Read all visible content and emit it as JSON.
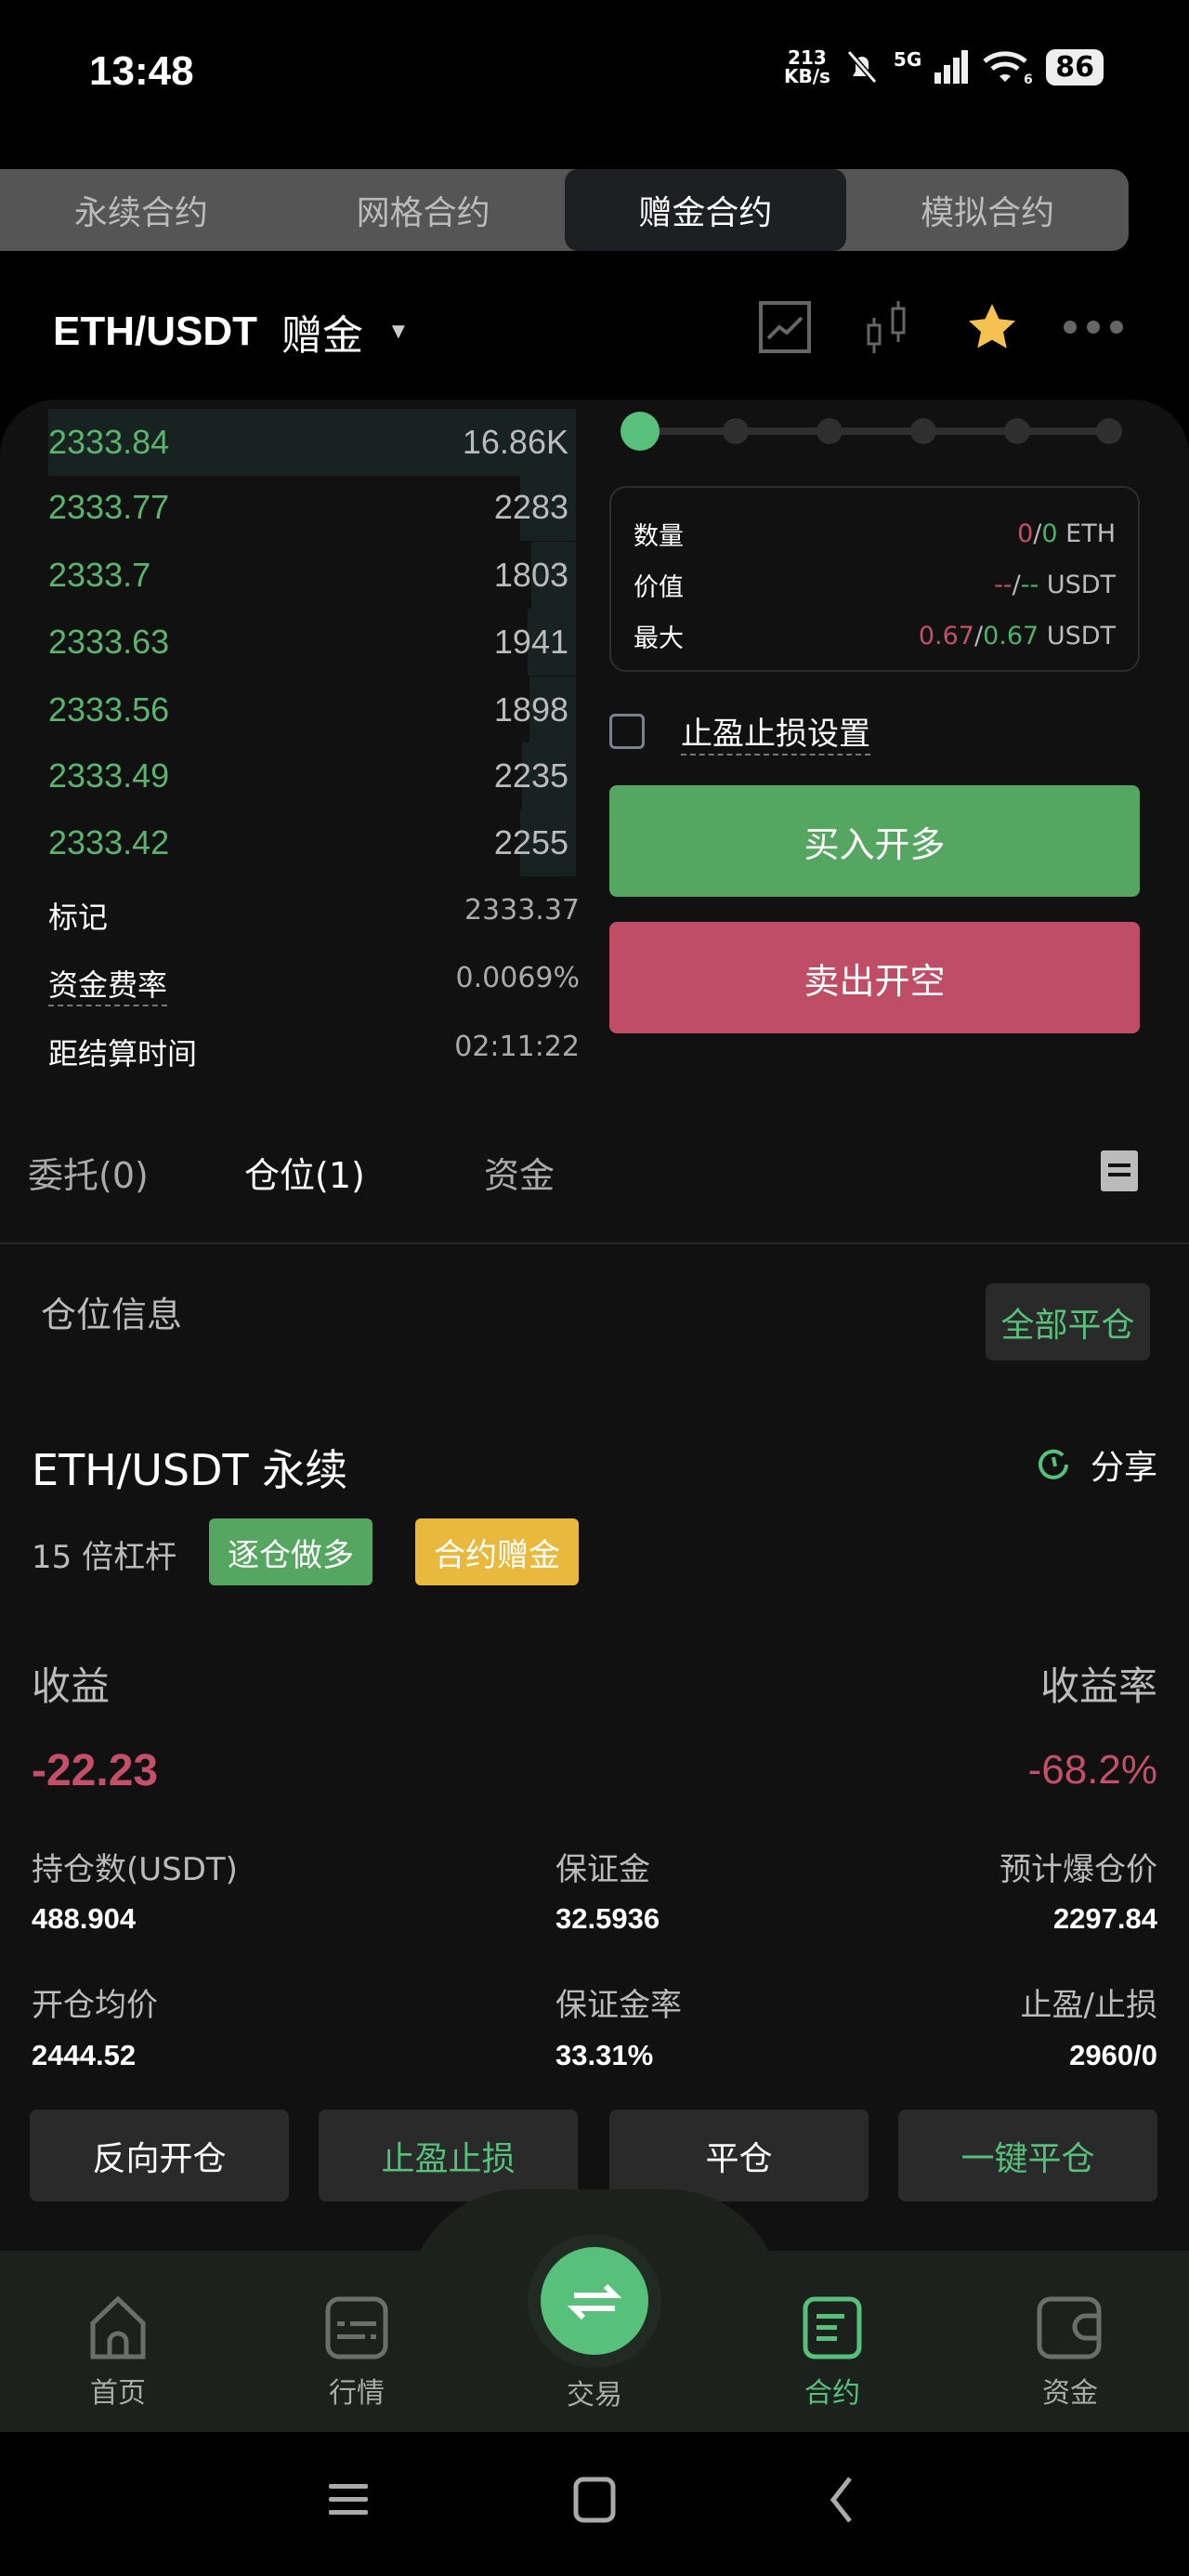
{
  "status_bar": {
    "time": "13:48",
    "net_speed": "213",
    "net_unit": "KB/s",
    "network": "5G",
    "wifi_badge": "6",
    "battery": "86"
  },
  "mode_tabs": [
    {
      "label": "永续合约"
    },
    {
      "label": "网格合约"
    },
    {
      "label": "赠金合约",
      "active": true
    },
    {
      "label": "模拟合约"
    }
  ],
  "header": {
    "pair": "ETH/USDT",
    "mode": "赠金",
    "icons": [
      "chart-line-icon",
      "candlestick-icon",
      "star-icon",
      "more-icon"
    ],
    "favorite_color": "#f5c150"
  },
  "orderbook": {
    "rows": [
      {
        "price": "2333.84",
        "qty": "16.86K"
      },
      {
        "price": "2333.77",
        "qty": "2283"
      },
      {
        "price": "2333.7",
        "qty": "1803"
      },
      {
        "price": "2333.63",
        "qty": "1941"
      },
      {
        "price": "2333.56",
        "qty": "1898"
      },
      {
        "price": "2333.49",
        "qty": "2235"
      },
      {
        "price": "2333.42",
        "qty": "2255"
      }
    ],
    "mark_label": "标记",
    "mark_value": "2333.37",
    "funding_label": "资金费率",
    "funding_value": "0.0069%",
    "settle_label": "距结算时间",
    "settle_value": "02:11:22"
  },
  "order_form": {
    "leverage_slider_level": 0,
    "slider_steps": 6,
    "qty_label": "数量",
    "qty_sell": "0",
    "qty_buy": "0",
    "qty_unit": "ETH",
    "value_label": "价值",
    "value_sell": "--",
    "value_buy": "--",
    "value_unit": "USDT",
    "max_label": "最大",
    "max_sell": "0.67",
    "max_buy": "0.67",
    "max_unit": "USDT",
    "tpsl_label": "止盈止损设置",
    "tpsl_checked": false,
    "buy_label": "买入开多",
    "sell_label": "卖出开空",
    "buy_color": "#55a660",
    "sell_color": "#c04d66"
  },
  "order_tabs": [
    {
      "label": "委托(0)"
    },
    {
      "label": "仓位(1)",
      "active": true
    },
    {
      "label": "资金"
    }
  ],
  "position": {
    "section_title": "仓位信息",
    "close_all": "全部平仓",
    "symbol": "ETH/USDT 永续",
    "share": "分享",
    "leverage": "15 倍杠杆",
    "tag_side": "逐仓做多",
    "tag_bonus": "合约赠金",
    "pnl_label": "收益",
    "pnl_value": "-22.23",
    "roe_label": "收益率",
    "roe_value": "-68.2%",
    "size_label": "持仓数(USDT)",
    "size_value": "488.904",
    "margin_label": "保证金",
    "margin_value": "32.5936",
    "liq_label": "预计爆仓价",
    "liq_value": "2297.84",
    "entry_label": "开仓均价",
    "entry_value": "2444.52",
    "margin_rate_label": "保证金率",
    "margin_rate_value": "33.31%",
    "tpsl_label": "止盈/止损",
    "tpsl_value": "2960/0",
    "actions": [
      "反向开仓",
      "止盈止损",
      "平仓",
      "一键平仓"
    ]
  },
  "bottom_nav": [
    {
      "label": "首页"
    },
    {
      "label": "行情"
    },
    {
      "label": "交易"
    },
    {
      "label": "合约",
      "active": true
    },
    {
      "label": "资金"
    }
  ]
}
